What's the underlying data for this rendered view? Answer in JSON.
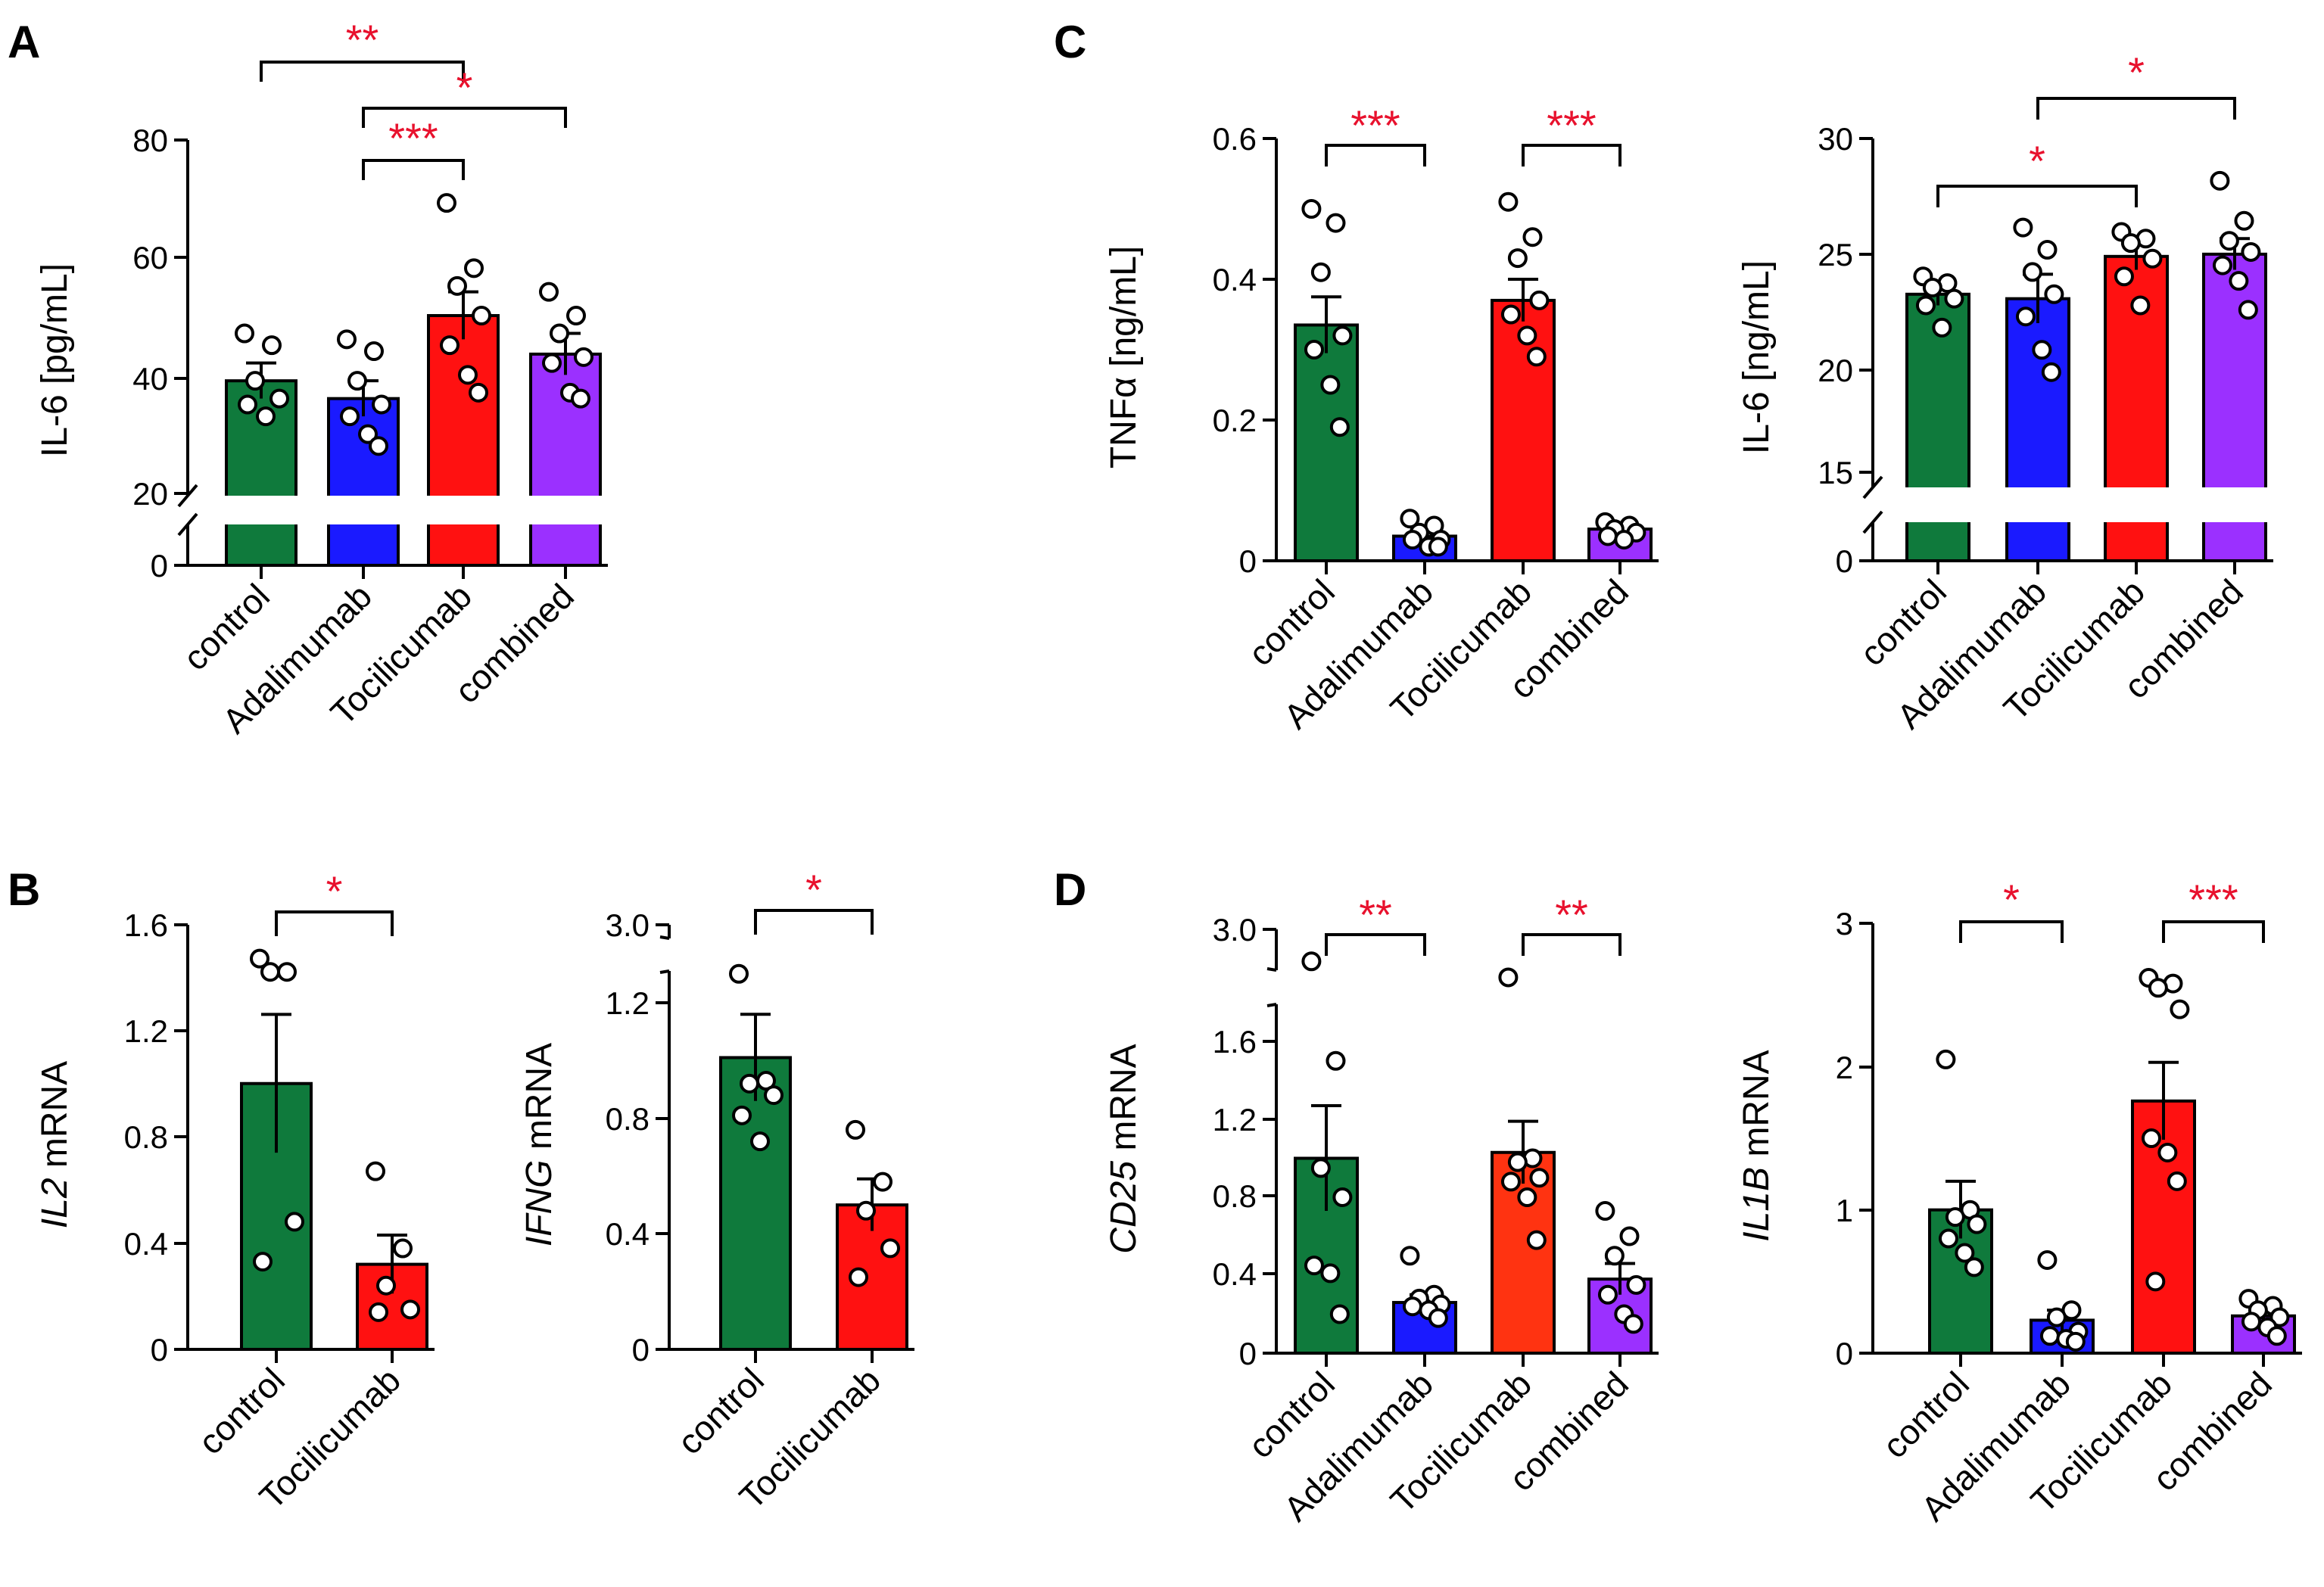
{
  "panel_labels": [
    "A",
    "B",
    "C",
    "D"
  ],
  "colors": {
    "control": "#0f7a3c",
    "Adalimumab": "#1a1aff",
    "Tocilicumab": "#ff1111",
    "Tocilicumab_D": "#ff3311",
    "combined": "#9b30ff",
    "significance": "#e8112d"
  },
  "chart_data": [
    {
      "id": "A",
      "panel_label": "A",
      "type": "bar",
      "ylabel": "IL-6 [pg/mL]",
      "ylabel_italic": "",
      "ylabel_rest": "",
      "categories": [
        "control",
        "Adalimumab",
        "Tocilicumab",
        "combined"
      ],
      "values": [
        39,
        36,
        50,
        43.5
      ],
      "sem": [
        3,
        3,
        4,
        3.5
      ],
      "points": [
        [
          47,
          45,
          39,
          36,
          35,
          33
        ],
        [
          46,
          44,
          39,
          35,
          33,
          30,
          28
        ],
        [
          69,
          58,
          55,
          50,
          45,
          40,
          37
        ],
        [
          54,
          50,
          47,
          43,
          42,
          37,
          36
        ]
      ],
      "yticks": [
        "0",
        "20",
        "40",
        "60",
        "80"
      ],
      "axis_break": {
        "lower": [
          0,
          0
        ],
        "upper": [
          20,
          80
        ]
      },
      "significance": [
        {
          "from": 0,
          "to": 2,
          "label": "**"
        },
        {
          "from": 1,
          "to": 3,
          "label": "*"
        },
        {
          "from": 1,
          "to": 2,
          "label": "***"
        }
      ]
    },
    {
      "id": "B1",
      "panel_label": "B",
      "type": "bar",
      "ylabel": "",
      "ylabel_italic": "IL2",
      "ylabel_rest": " mRNA",
      "categories": [
        "control",
        "Tocilicumab"
      ],
      "values": [
        1.0,
        0.32
      ],
      "sem": [
        0.26,
        0.11
      ],
      "points": [
        [
          1.47,
          1.42,
          1.42,
          0.48,
          0.33
        ],
        [
          0.67,
          0.38,
          0.24,
          0.15,
          0.14
        ]
      ],
      "yticks": [
        "0",
        "0.4",
        "0.8",
        "1.2",
        "1.6"
      ],
      "ylim": [
        0,
        1.6
      ],
      "significance": [
        {
          "from": 0,
          "to": 1,
          "label": "*"
        }
      ]
    },
    {
      "id": "B2",
      "panel_label": "",
      "type": "bar",
      "ylabel": "",
      "ylabel_italic": "IFNG",
      "ylabel_rest": " mRNA",
      "categories": [
        "control",
        "Tocilicumab"
      ],
      "values": [
        1.01,
        0.5
      ],
      "sem": [
        0.15,
        0.09
      ],
      "points": [
        [
          1.3,
          0.93,
          0.92,
          0.88,
          0.81,
          0.72
        ],
        [
          0.76,
          0.58,
          0.48,
          0.35,
          0.25
        ]
      ],
      "yticks": [
        "0",
        "0.4",
        "0.8",
        "1.2",
        "3.0"
      ],
      "axis_break": {
        "lower": [
          0,
          1.2
        ],
        "upper": [
          3.0,
          3.0
        ]
      },
      "significance": [
        {
          "from": 0,
          "to": 1,
          "label": "*"
        }
      ]
    },
    {
      "id": "C1",
      "panel_label": "C",
      "type": "bar",
      "ylabel": "TNFα [ng/mL]",
      "ylabel_italic": "",
      "ylabel_rest": "",
      "categories": [
        "control",
        "Adalimumab",
        "Tocilicumab",
        "combined"
      ],
      "values": [
        0.335,
        0.035,
        0.37,
        0.045
      ],
      "sem": [
        0.04,
        0.006,
        0.03,
        0.005
      ],
      "points": [
        [
          0.5,
          0.48,
          0.41,
          0.32,
          0.3,
          0.25,
          0.19
        ],
        [
          0.06,
          0.05,
          0.04,
          0.03,
          0.03,
          0.02,
          0.02
        ],
        [
          0.51,
          0.46,
          0.43,
          0.37,
          0.35,
          0.32,
          0.29
        ],
        [
          0.055,
          0.05,
          0.045,
          0.04,
          0.035,
          0.03
        ]
      ],
      "yticks": [
        "0",
        "0.2",
        "0.4",
        "0.6"
      ],
      "ylim": [
        0,
        0.6
      ],
      "significance": [
        {
          "from": 0,
          "to": 1,
          "label": "***"
        },
        {
          "from": 2,
          "to": 3,
          "label": "***"
        }
      ]
    },
    {
      "id": "C2",
      "panel_label": "",
      "type": "bar",
      "ylabel": "IL-6 [ng/mL]",
      "ylabel_italic": "",
      "ylabel_rest": "",
      "categories": [
        "control",
        "Adalimumab",
        "Tocilicumab",
        "combined"
      ],
      "values": [
        23,
        22.8,
        24.7,
        24.8
      ],
      "sem": [
        0.5,
        1.1,
        0.6,
        0.7
      ],
      "points": [
        [
          23.8,
          23.5,
          23.3,
          22.8,
          22.5,
          21.5
        ],
        [
          26,
          25,
          24,
          23,
          22,
          20.5,
          19.5
        ],
        [
          25.8,
          25.5,
          25.3,
          24.6,
          23.8,
          22.5
        ],
        [
          28.1,
          26.3,
          25.4,
          24.9,
          24.3,
          23.6,
          22.3
        ]
      ],
      "yticks": [
        "0",
        "15",
        "20",
        "25",
        "30"
      ],
      "axis_break": {
        "lower": [
          0,
          0
        ],
        "upper": [
          15,
          30
        ]
      },
      "significance": [
        {
          "from": 1,
          "to": 3,
          "label": "*"
        },
        {
          "from": 0,
          "to": 2,
          "label": "*"
        }
      ]
    },
    {
      "id": "D1",
      "panel_label": "D",
      "type": "bar",
      "ylabel": "",
      "ylabel_italic": "CD25",
      "ylabel_rest": " mRNA",
      "categories": [
        "control",
        "Adalimumab",
        "Tocilicumab",
        "combined"
      ],
      "values": [
        1.0,
        0.26,
        1.03,
        0.38
      ],
      "sem": [
        0.27,
        0.04,
        0.16,
        0.08
      ],
      "points": [
        [
          2.6,
          1.5,
          0.95,
          0.8,
          0.45,
          0.41,
          0.2
        ],
        [
          0.5,
          0.3,
          0.28,
          0.25,
          0.24,
          0.22,
          0.18
        ],
        [
          2.4,
          1.0,
          0.98,
          0.9,
          0.88,
          0.8,
          0.58
        ],
        [
          0.73,
          0.6,
          0.5,
          0.35,
          0.3,
          0.2,
          0.15
        ]
      ],
      "yticks": [
        "0",
        "0.4",
        "0.8",
        "1.2",
        "1.6",
        "3.0"
      ],
      "axis_break": {
        "lower": [
          0,
          1.6
        ],
        "upper": [
          3.0,
          3.0
        ]
      },
      "significance": [
        {
          "from": 0,
          "to": 1,
          "label": "**"
        },
        {
          "from": 2,
          "to": 3,
          "label": "**"
        }
      ]
    },
    {
      "id": "D2",
      "panel_label": "",
      "type": "bar",
      "ylabel": "",
      "ylabel_italic": "IL1B",
      "ylabel_rest": " mRNA",
      "categories": [
        "control",
        "Adalimumab",
        "Tocilicumab",
        "combined"
      ],
      "values": [
        1.0,
        0.23,
        1.76,
        0.26
      ],
      "sem": [
        0.2,
        0.07,
        0.27,
        0.04
      ],
      "points": [
        [
          2.05,
          1.0,
          0.95,
          0.9,
          0.8,
          0.7,
          0.6
        ],
        [
          0.65,
          0.3,
          0.25,
          0.15,
          0.12,
          0.1,
          0.08
        ],
        [
          2.62,
          2.58,
          2.55,
          2.4,
          1.5,
          1.4,
          1.2,
          0.5
        ],
        [
          0.38,
          0.33,
          0.3,
          0.25,
          0.22,
          0.18,
          0.12
        ]
      ],
      "yticks": [
        "0",
        "1",
        "2",
        "3"
      ],
      "ylim": [
        0,
        3
      ],
      "significance": [
        {
          "from": 0,
          "to": 1,
          "label": "*"
        },
        {
          "from": 2,
          "to": 3,
          "label": "***"
        }
      ]
    }
  ]
}
